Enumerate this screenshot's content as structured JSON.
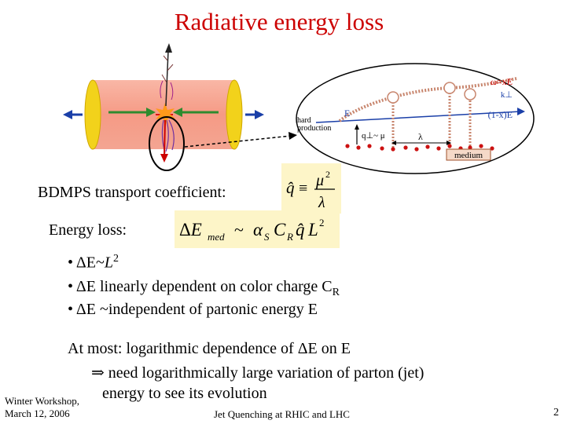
{
  "slide": {
    "title": "Radiative energy loss",
    "bdmps_label": "BDMPS transport coefficient:",
    "qhat_eq": "q̂ ≡ μ²/λ",
    "energy_loss_label": "Energy loss:",
    "energy_loss_eq": "ΔE_med ~ α_S C_R q̂ L²",
    "bullets": [
      {
        "marker": "•",
        "pre": "ΔE~",
        "italic": "L",
        "post": "2"
      },
      {
        "marker": "•",
        "pre": "ΔE linearly dependent on color charge C",
        "italic": "",
        "post": "R"
      },
      {
        "marker": "•",
        "pre": "ΔE ~independent of partonic energy E",
        "italic": "",
        "post": ""
      }
    ],
    "conclusion": {
      "line1": "At most: logarithmic dependence of ΔE on E",
      "line2": "⇒ need logarithmically large variation of parton (jet)",
      "line3": "energy to see its evolution"
    },
    "footer": {
      "left_line1": "Winter Workshop,",
      "left_line2": "March 12, 2006",
      "center": "Jet Quenching at RHIC and LHC",
      "page_number": "2"
    }
  },
  "diagram": {
    "labels": {
      "omega": "ω=xE",
      "k_perp": "k⊥",
      "hard": "hard",
      "production": "production",
      "e_label": "E",
      "one_minus_x": "(1-x)E",
      "q_perp": "q⊥~ μ",
      "lambda": "λ",
      "medium": "medium"
    },
    "colors": {
      "title": "#cc0000",
      "cylinder": "#f7a08c",
      "cap": "#f2d21b",
      "arrow_blue": "#1a3fa8",
      "arrow_green": "#2e8b2e",
      "gluon_chain": "#c8866e"
    }
  }
}
